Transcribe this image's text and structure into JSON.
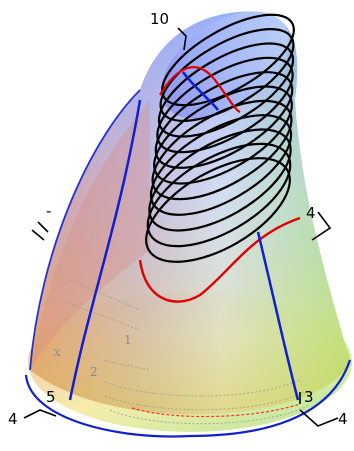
{
  "plot": {
    "labels": {
      "z_top": "10",
      "right_top": "4",
      "right_low": "3",
      "left_low": "5",
      "bottom_left": "4",
      "bottom_right": "4",
      "left_mid": "-"
    },
    "faint_labels": {
      "x": "x",
      "one": "1",
      "two": "2"
    },
    "colors": {
      "contour": "#000000",
      "red_curve": "#e00000",
      "blue_curve": "#1020d0",
      "axis": "#000000",
      "surface_top": "#9ab8ff",
      "surface_left": "#e08080",
      "surface_right": "#8fe070",
      "surface_bottom": "#e8e060"
    }
  }
}
